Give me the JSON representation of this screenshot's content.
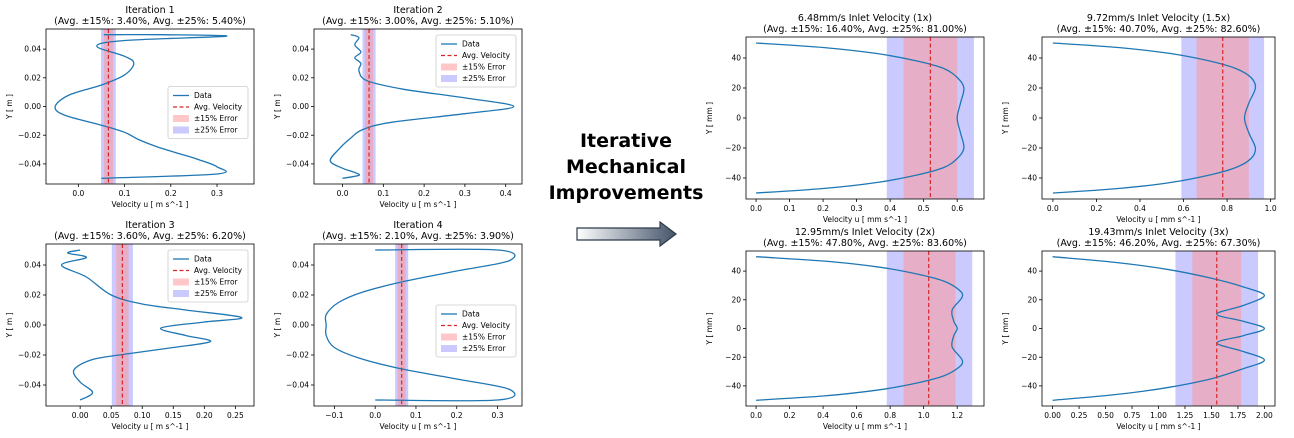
{
  "annotation": {
    "lines": [
      "Iterative",
      "Mechanical",
      "Improvements"
    ]
  },
  "legend_labels": [
    "Data",
    "Avg. Velocity",
    "±15% Error",
    "±25% Error"
  ],
  "colors": {
    "data": "#1f77b4",
    "avg": "#d62728",
    "band15": "#ff9999",
    "band25": "#8080ff"
  },
  "chart_data": [
    {
      "type": "line",
      "title": "Iteration 1",
      "subtitle": "(Avg. ±15%: 3.40%, Avg. ±25%: 5.40%)",
      "xlabel": "Velocity u [ m s^-1 ]",
      "ylabel": "Y [ m ]",
      "xlim": [
        -0.07,
        0.38
      ],
      "ylim": [
        -0.054,
        0.054
      ],
      "xticks": [
        0.0,
        0.1,
        0.2,
        0.3
      ],
      "xticklabels": [
        "0.0",
        "0.1",
        "0.2",
        "0.3"
      ],
      "yticks": [
        -0.04,
        -0.02,
        0.0,
        0.02,
        0.04
      ],
      "yticklabels": [
        "−0.04",
        "−0.02",
        "0.00",
        "0.02",
        "0.04"
      ],
      "avg_velocity": 0.065,
      "band15": [
        0.055,
        0.075
      ],
      "band25": [
        0.049,
        0.081
      ],
      "legend": true,
      "legend_loc": "center-right",
      "x": [
        0.055,
        0.18,
        0.32,
        0.1,
        0.04,
        0.1,
        0.12,
        0.1,
        0.05,
        -0.02,
        -0.05,
        -0.03,
        0.05,
        0.1,
        0.13,
        0.17,
        0.22,
        0.26,
        0.3,
        0.3,
        0.05
      ],
      "y": [
        0.05,
        0.05,
        0.049,
        0.046,
        0.042,
        0.035,
        0.03,
        0.022,
        0.015,
        0.008,
        0.0,
        -0.006,
        -0.013,
        -0.018,
        -0.023,
        -0.028,
        -0.033,
        -0.037,
        -0.042,
        -0.047,
        -0.05
      ]
    },
    {
      "type": "line",
      "title": "Iteration 2",
      "subtitle": "(Avg. ±15%: 3.00%, Avg. ±25%: 5.10%)",
      "xlabel": "Velocity u [ m s^-1 ]",
      "ylabel": "Y [ m ]",
      "xlim": [
        -0.07,
        0.44
      ],
      "ylim": [
        -0.054,
        0.054
      ],
      "xticks": [
        0.0,
        0.1,
        0.2,
        0.3,
        0.4
      ],
      "xticklabels": [
        "0.0",
        "0.1",
        "0.2",
        "0.3",
        "0.4"
      ],
      "yticks": [
        -0.04,
        -0.02,
        0.0,
        0.02,
        0.04
      ],
      "yticklabels": [
        "−0.04",
        "−0.02",
        "0.00",
        "0.02",
        "0.04"
      ],
      "avg_velocity": 0.065,
      "band15": [
        0.055,
        0.075
      ],
      "band25": [
        0.049,
        0.081
      ],
      "legend": true,
      "legend_loc": "upper-right",
      "x": [
        0.02,
        0.04,
        0.03,
        0.045,
        0.03,
        0.045,
        0.04,
        0.06,
        0.15,
        0.3,
        0.42,
        0.3,
        0.12,
        0.05,
        0.02,
        -0.01,
        -0.03,
        0.0,
        0.03,
        0.04,
        0.0
      ],
      "y": [
        0.05,
        0.048,
        0.043,
        0.038,
        0.034,
        0.03,
        0.025,
        0.018,
        0.012,
        0.006,
        0.0,
        -0.005,
        -0.011,
        -0.016,
        -0.022,
        -0.03,
        -0.038,
        -0.043,
        -0.046,
        -0.048,
        -0.05
      ]
    },
    {
      "type": "line",
      "title": "Iteration 3",
      "subtitle": "(Avg. ±15%: 3.60%, Avg. ±25%: 6.20%)",
      "xlabel": "Velocity u [ m s^-1 ]",
      "ylabel": "Y [ m ]",
      "xlim": [
        -0.055,
        0.28
      ],
      "ylim": [
        -0.054,
        0.054
      ],
      "xticks": [
        0.0,
        0.05,
        0.1,
        0.15,
        0.2,
        0.25
      ],
      "xticklabels": [
        "0.00",
        "0.05",
        "0.10",
        "0.15",
        "0.20",
        "0.25"
      ],
      "yticks": [
        -0.04,
        -0.02,
        0.0,
        0.02,
        0.04
      ],
      "yticklabels": [
        "−0.04",
        "−0.02",
        "0.00",
        "0.02",
        "0.04"
      ],
      "avg_velocity": 0.068,
      "band15": [
        0.058,
        0.078
      ],
      "band25": [
        0.051,
        0.085
      ],
      "legend": true,
      "legend_loc": "upper-right",
      "x": [
        0.0,
        -0.02,
        0.01,
        -0.03,
        0.01,
        0.05,
        0.1,
        0.17,
        0.26,
        0.2,
        0.13,
        0.17,
        0.21,
        0.15,
        0.08,
        0.02,
        -0.01,
        0.0,
        0.02,
        0.0
      ],
      "y": [
        0.05,
        0.048,
        0.045,
        0.04,
        0.032,
        0.02,
        0.014,
        0.01,
        0.005,
        0.002,
        -0.002,
        -0.007,
        -0.011,
        -0.015,
        -0.019,
        -0.023,
        -0.03,
        -0.038,
        -0.045,
        -0.05
      ]
    },
    {
      "type": "line",
      "title": "Iteration 4",
      "subtitle": "(Avg. ±15%: 2.10%, Avg. ±25%: 3.90%)",
      "xlabel": "Velocity u [ m s^-1 ]",
      "ylabel": "Y [ m ]",
      "xlim": [
        -0.15,
        0.36
      ],
      "ylim": [
        -0.054,
        0.054
      ],
      "xticks": [
        -0.1,
        0.0,
        0.1,
        0.2,
        0.3
      ],
      "xticklabels": [
        "−0.1",
        "0.0",
        "0.1",
        "0.2",
        "0.3"
      ],
      "yticks": [
        -0.04,
        -0.02,
        0.0,
        0.02,
        0.04
      ],
      "yticklabels": [
        "−0.04",
        "−0.02",
        "0.00",
        "0.02",
        "0.04"
      ],
      "avg_velocity": 0.065,
      "band15": [
        0.055,
        0.075
      ],
      "band25": [
        0.049,
        0.081
      ],
      "legend": true,
      "legend_loc": "center-right",
      "x": [
        0.0,
        0.3,
        0.33,
        0.2,
        0.07,
        -0.03,
        -0.09,
        -0.12,
        -0.12,
        -0.12,
        -0.1,
        -0.04,
        0.06,
        0.2,
        0.33,
        0.3,
        0.0
      ],
      "y": [
        0.05,
        0.05,
        0.043,
        0.036,
        0.029,
        0.022,
        0.015,
        0.007,
        0.0,
        -0.007,
        -0.015,
        -0.022,
        -0.029,
        -0.036,
        -0.043,
        -0.05,
        -0.05
      ]
    },
    {
      "type": "line",
      "title": "6.48mm/s Inlet Velocity (1x)",
      "subtitle": "(Avg. ±15%: 16.40%, Avg. ±25%: 81.00%)",
      "xlabel": "Velocity u [ mm s^-1 ]",
      "ylabel": "Y [ mm ]",
      "xlim": [
        -0.03,
        0.68
      ],
      "ylim": [
        -54,
        54
      ],
      "xticks": [
        0.0,
        0.1,
        0.2,
        0.3,
        0.4,
        0.5,
        0.6
      ],
      "xticklabels": [
        "0.0",
        "0.1",
        "0.2",
        "0.3",
        "0.4",
        "0.5",
        "0.6"
      ],
      "yticks": [
        -40,
        -20,
        0,
        20,
        40
      ],
      "yticklabels": [
        "−40",
        "−20",
        "0",
        "20",
        "40"
      ],
      "avg_velocity": 0.52,
      "band15": [
        0.44,
        0.6
      ],
      "band25": [
        0.39,
        0.65
      ],
      "legend": false,
      "x": [
        0.0,
        0.2,
        0.36,
        0.48,
        0.56,
        0.6,
        0.62,
        0.61,
        0.6,
        0.61,
        0.62,
        0.6,
        0.56,
        0.48,
        0.36,
        0.2,
        0.0
      ],
      "y": [
        50,
        47,
        43,
        38,
        33,
        27,
        20,
        10,
        0,
        -10,
        -20,
        -27,
        -33,
        -38,
        -43,
        -47,
        -50
      ]
    },
    {
      "type": "line",
      "title": "9.72mm/s Inlet Velocity (1.5x)",
      "subtitle": "(Avg. ±15%: 40.70%, Avg. ±25%: 82.60%)",
      "xlabel": "Velocity u [ mm s^-1 ]",
      "ylabel": "Y [ mm ]",
      "xlim": [
        -0.05,
        1.02
      ],
      "ylim": [
        -54,
        54
      ],
      "xticks": [
        0.0,
        0.2,
        0.4,
        0.6,
        0.8,
        1.0
      ],
      "xticklabels": [
        "0.0",
        "0.2",
        "0.4",
        "0.6",
        "0.8",
        "1.0"
      ],
      "yticks": [
        -40,
        -20,
        0,
        20,
        40
      ],
      "yticklabels": [
        "−40",
        "−20",
        "0",
        "20",
        "40"
      ],
      "avg_velocity": 0.78,
      "band15": [
        0.66,
        0.9
      ],
      "band25": [
        0.59,
        0.97
      ],
      "legend": false,
      "x": [
        0.0,
        0.3,
        0.54,
        0.72,
        0.84,
        0.91,
        0.93,
        0.9,
        0.88,
        0.9,
        0.93,
        0.91,
        0.84,
        0.72,
        0.54,
        0.3,
        0.0
      ],
      "y": [
        50,
        47,
        43,
        38,
        33,
        27,
        20,
        10,
        0,
        -10,
        -20,
        -27,
        -33,
        -38,
        -43,
        -47,
        -50
      ]
    },
    {
      "type": "line",
      "title": "12.95mm/s Inlet Velocity (2x)",
      "subtitle": "(Avg. ±15%: 47.80%, Avg. ±25%: 83.60%)",
      "xlabel": "Velocity u [ mm s^-1 ]",
      "ylabel": "Y [ mm ]",
      "xlim": [
        -0.06,
        1.36
      ],
      "ylim": [
        -54,
        54
      ],
      "xticks": [
        0.0,
        0.2,
        0.4,
        0.6,
        0.8,
        1.0,
        1.2
      ],
      "xticklabels": [
        "0.0",
        "0.2",
        "0.4",
        "0.6",
        "0.8",
        "1.0",
        "1.2"
      ],
      "yticks": [
        -40,
        -20,
        0,
        20,
        40
      ],
      "yticklabels": [
        "−40",
        "−20",
        "0",
        "20",
        "40"
      ],
      "avg_velocity": 1.03,
      "band15": [
        0.88,
        1.19
      ],
      "band25": [
        0.78,
        1.29
      ],
      "legend": false,
      "x": [
        0.0,
        0.4,
        0.72,
        0.96,
        1.12,
        1.21,
        1.23,
        1.17,
        1.18,
        1.2,
        1.18,
        1.17,
        1.23,
        1.21,
        1.12,
        0.96,
        0.72,
        0.4,
        0.0
      ],
      "y": [
        50,
        47,
        43,
        38,
        33,
        27,
        22,
        13,
        5,
        0,
        -5,
        -13,
        -22,
        -27,
        -33,
        -38,
        -43,
        -47,
        -50
      ]
    },
    {
      "type": "line",
      "title": "19.43mm/s Inlet Velocity (3x)",
      "subtitle": "(Avg. ±15%: 46.20%, Avg. ±25%: 67.30%)",
      "xlabel": "Velocity u [ mm s^-1 ]",
      "ylabel": "Y [ mm ]",
      "xlim": [
        -0.1,
        2.1
      ],
      "ylim": [
        -54,
        54
      ],
      "xticks": [
        0.0,
        0.25,
        0.5,
        0.75,
        1.0,
        1.25,
        1.5,
        1.75,
        2.0
      ],
      "xticklabels": [
        "0.00",
        "0.25",
        "0.50",
        "0.75",
        "1.00",
        "1.25",
        "1.50",
        "1.75",
        "2.00"
      ],
      "yticks": [
        -40,
        -20,
        0,
        20,
        40
      ],
      "yticklabels": [
        "−40",
        "−20",
        "0",
        "20",
        "40"
      ],
      "avg_velocity": 1.55,
      "band15": [
        1.32,
        1.78
      ],
      "band25": [
        1.16,
        1.94
      ],
      "legend": false,
      "x": [
        0.0,
        0.6,
        1.1,
        1.5,
        1.8,
        2.0,
        1.8,
        1.55,
        1.8,
        2.0,
        1.8,
        1.55,
        1.8,
        2.0,
        1.8,
        1.5,
        1.1,
        0.6,
        0.0
      ],
      "y": [
        50,
        46,
        41,
        35,
        29,
        23,
        16,
        10,
        5,
        0,
        -5,
        -10,
        -16,
        -22,
        -28,
        -35,
        -41,
        -46,
        -50
      ]
    }
  ]
}
